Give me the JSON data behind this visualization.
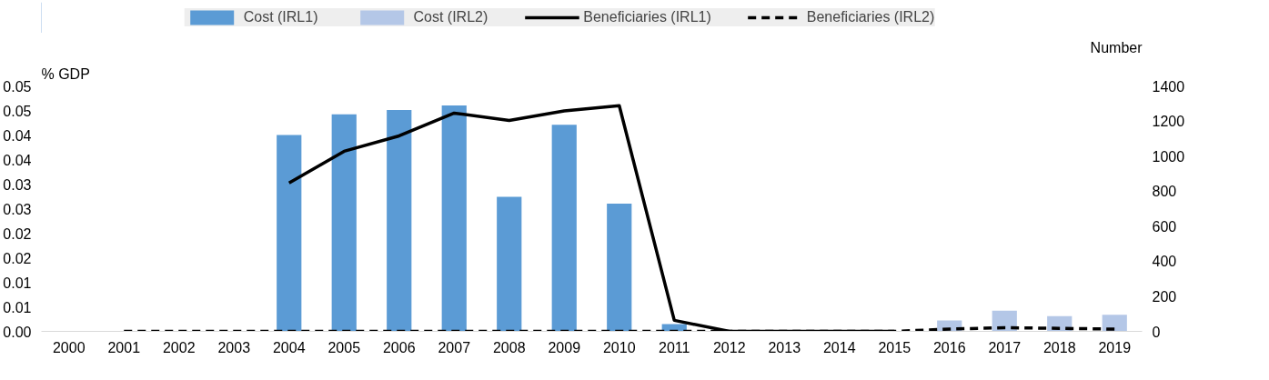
{
  "chart_data": {
    "type": "bar",
    "ylabel": "% GDP",
    "y2label": "Number",
    "categories": [
      "2000",
      "2001",
      "2002",
      "2003",
      "2004",
      "2005",
      "2006",
      "2007",
      "2008",
      "2009",
      "2010",
      "2011",
      "2012",
      "2013",
      "2014",
      "2015",
      "2016",
      "2017",
      "2018",
      "2019"
    ],
    "series": [
      {
        "name": "Cost (IRL1)",
        "color": "#5b9bd5",
        "values": [
          null,
          null,
          null,
          null,
          0.04,
          0.0442,
          0.0451,
          0.046,
          0.0274,
          0.0421,
          0.026,
          0.0015,
          null,
          null,
          null,
          null,
          null,
          null,
          null,
          null
        ]
      },
      {
        "name": "Cost (IRL2)",
        "color": "#b4c7e7",
        "values": [
          null,
          null,
          null,
          null,
          null,
          null,
          null,
          null,
          null,
          null,
          null,
          null,
          null,
          null,
          null,
          null,
          0.0022,
          0.0042,
          0.0031,
          0.0034
        ]
      },
      {
        "name": "Beneficiaries (IRL1)",
        "type": "line",
        "axis": "y2",
        "color": "#000000",
        "line_style": "solid",
        "values": [
          null,
          null,
          null,
          null,
          847,
          1027,
          1115,
          1245,
          1203,
          1257,
          1287,
          63,
          0,
          0,
          0,
          0,
          null,
          null,
          null,
          null
        ]
      },
      {
        "name": "Beneficiaries (IRL2)",
        "type": "line",
        "axis": "y2",
        "color": "#000000",
        "line_style": "dashed",
        "values": [
          null,
          0,
          0,
          0,
          0,
          0,
          0,
          0,
          0,
          0,
          0,
          0,
          0,
          0,
          0,
          0,
          13,
          21,
          17,
          13
        ]
      }
    ],
    "ylim": [
      0,
      0.05
    ],
    "yticks": [
      {
        "value": 0,
        "label": "0.00"
      },
      {
        "value": 0.005,
        "label": "0.01"
      },
      {
        "value": 0.01,
        "label": "0.01"
      },
      {
        "value": 0.015,
        "label": "0.02"
      },
      {
        "value": 0.02,
        "label": "0.02"
      },
      {
        "value": 0.025,
        "label": "0.03"
      },
      {
        "value": 0.03,
        "label": "0.03"
      },
      {
        "value": 0.035,
        "label": "0.04"
      },
      {
        "value": 0.04,
        "label": "0.04"
      },
      {
        "value": 0.045,
        "label": "0.05"
      },
      {
        "value": 0.05,
        "label": "0.05"
      }
    ],
    "y2lim": [
      0,
      1400
    ],
    "y2ticks": [
      0,
      200,
      400,
      600,
      800,
      1000,
      1200,
      1400
    ],
    "legend": "top",
    "grid": false
  }
}
